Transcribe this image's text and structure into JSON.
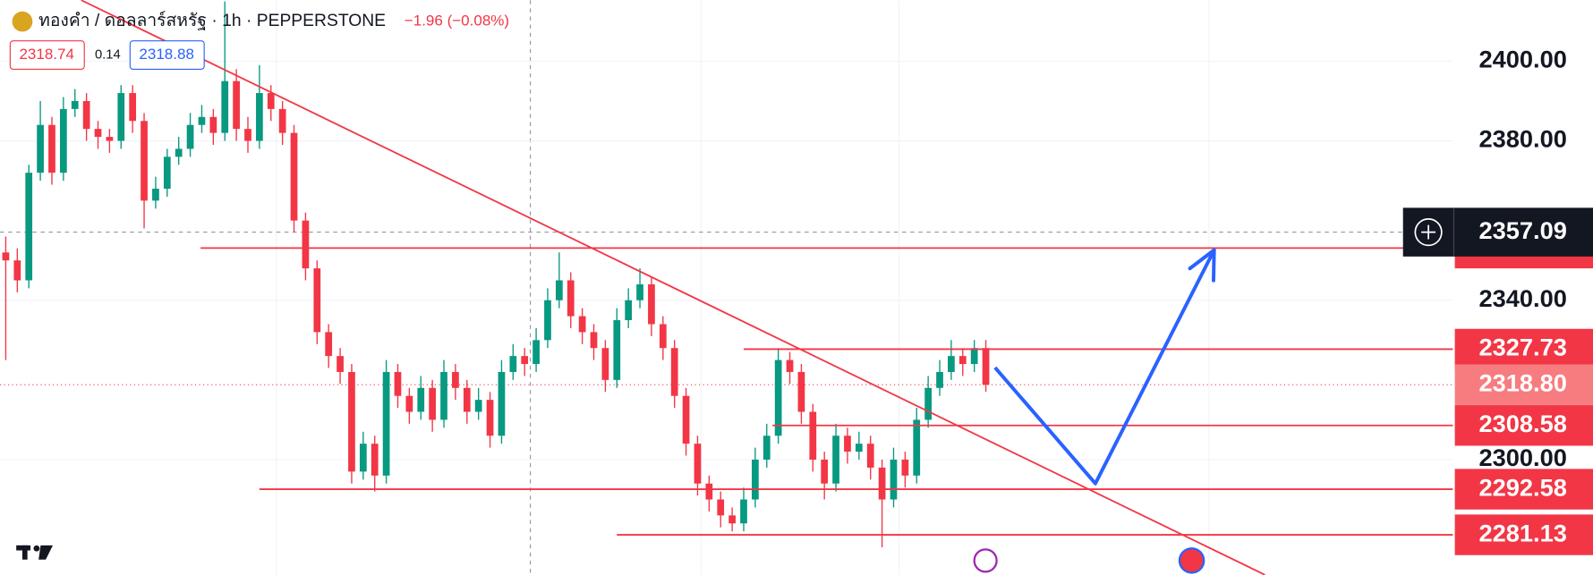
{
  "header": {
    "symbol": "ทองคำ / ดอลลาร์สหรัฐ · 1h · PEPPERSTONE",
    "change": "−1.96 (−0.08%)",
    "bid": "2318.74",
    "spread": "0.14",
    "ask": "2318.88"
  },
  "chart_data": {
    "type": "candlestick",
    "xlim": [
      -0.5,
      125.5
    ],
    "ylim": [
      2271.1,
      2415.3
    ],
    "yticks": [
      {
        "value": 2400,
        "label": "2400.00"
      },
      {
        "value": 2380,
        "label": "2380.00"
      },
      {
        "value": 2340,
        "label": "2340.00"
      },
      {
        "value": 2300,
        "label": "2300.00"
      }
    ],
    "grid": true,
    "colors": {
      "up": "#089981",
      "down": "#f23645"
    },
    "ohlc": [
      [
        2352,
        2356,
        2325,
        2350
      ],
      [
        2350,
        2353,
        2342,
        2345
      ],
      [
        2345,
        2374,
        2343,
        2372
      ],
      [
        2372,
        2390,
        2370,
        2384
      ],
      [
        2384,
        2386,
        2369,
        2372
      ],
      [
        2372,
        2391,
        2370,
        2388
      ],
      [
        2388,
        2393,
        2386,
        2390
      ],
      [
        2390,
        2392,
        2380,
        2383
      ],
      [
        2383,
        2385,
        2378,
        2381
      ],
      [
        2381,
        2383,
        2377,
        2380
      ],
      [
        2380,
        2394,
        2378,
        2392
      ],
      [
        2392,
        2394,
        2382,
        2385
      ],
      [
        2385,
        2387,
        2358,
        2365
      ],
      [
        2365,
        2371,
        2363,
        2368
      ],
      [
        2368,
        2378,
        2366,
        2376
      ],
      [
        2376,
        2381,
        2374,
        2378
      ],
      [
        2378,
        2387,
        2376,
        2384
      ],
      [
        2384,
        2389,
        2382,
        2386
      ],
      [
        2386,
        2388,
        2379,
        2382
      ],
      [
        2382,
        2415,
        2380,
        2395
      ],
      [
        2395,
        2398,
        2380,
        2383
      ],
      [
        2383,
        2386,
        2377,
        2380
      ],
      [
        2380,
        2399,
        2378,
        2392
      ],
      [
        2392,
        2394,
        2385,
        2388
      ],
      [
        2388,
        2390,
        2379,
        2382
      ],
      [
        2382,
        2384,
        2357,
        2360
      ],
      [
        2360,
        2362,
        2345,
        2348
      ],
      [
        2348,
        2350,
        2329,
        2332
      ],
      [
        2332,
        2334,
        2323,
        2326
      ],
      [
        2326,
        2328,
        2319,
        2322
      ],
      [
        2322,
        2324,
        2294,
        2297
      ],
      [
        2297,
        2307,
        2295,
        2304
      ],
      [
        2304,
        2306,
        2292,
        2296
      ],
      [
        2296,
        2325,
        2294,
        2322
      ],
      [
        2322,
        2324,
        2313,
        2316
      ],
      [
        2316,
        2318,
        2309,
        2312
      ],
      [
        2312,
        2321,
        2310,
        2318
      ],
      [
        2318,
        2320,
        2307,
        2310
      ],
      [
        2310,
        2325,
        2308,
        2322
      ],
      [
        2322,
        2324,
        2315,
        2318
      ],
      [
        2318,
        2320,
        2309,
        2312
      ],
      [
        2312,
        2318,
        2310,
        2315
      ],
      [
        2315,
        2317,
        2303,
        2306
      ],
      [
        2306,
        2325,
        2304,
        2322
      ],
      [
        2322,
        2329,
        2320,
        2326
      ],
      [
        2326,
        2328,
        2321,
        2324
      ],
      [
        2324,
        2333,
        2322,
        2330
      ],
      [
        2330,
        2343,
        2328,
        2340
      ],
      [
        2340,
        2352,
        2338,
        2345
      ],
      [
        2345,
        2347,
        2333,
        2336
      ],
      [
        2336,
        2338,
        2329,
        2332
      ],
      [
        2332,
        2334,
        2325,
        2328
      ],
      [
        2328,
        2330,
        2317,
        2320
      ],
      [
        2320,
        2338,
        2318,
        2335
      ],
      [
        2335,
        2343,
        2333,
        2340
      ],
      [
        2340,
        2348,
        2338,
        2344
      ],
      [
        2344,
        2346,
        2331,
        2334
      ],
      [
        2334,
        2336,
        2325,
        2328
      ],
      [
        2328,
        2330,
        2313,
        2316
      ],
      [
        2316,
        2318,
        2301,
        2304
      ],
      [
        2304,
        2306,
        2291,
        2294
      ],
      [
        2294,
        2296,
        2287,
        2290
      ],
      [
        2290,
        2292,
        2283,
        2286
      ],
      [
        2286,
        2288,
        2282,
        2284
      ],
      [
        2284,
        2293,
        2282,
        2290
      ],
      [
        2290,
        2303,
        2288,
        2300
      ],
      [
        2300,
        2309,
        2298,
        2306
      ],
      [
        2306,
        2328,
        2304,
        2325
      ],
      [
        2325,
        2327,
        2319,
        2322
      ],
      [
        2322,
        2324,
        2309,
        2312
      ],
      [
        2312,
        2314,
        2297,
        2300
      ],
      [
        2300,
        2302,
        2290,
        2294
      ],
      [
        2294,
        2309,
        2292,
        2306
      ],
      [
        2306,
        2308,
        2299,
        2302
      ],
      [
        2302,
        2307,
        2300,
        2304
      ],
      [
        2304,
        2306,
        2295,
        2298
      ],
      [
        2298,
        2300,
        2278,
        2290
      ],
      [
        2290,
        2303,
        2288,
        2300
      ],
      [
        2300,
        2302,
        2293,
        2296
      ],
      [
        2296,
        2313,
        2294,
        2310
      ],
      [
        2310,
        2321,
        2308,
        2318
      ],
      [
        2318,
        2325,
        2316,
        2322
      ],
      [
        2322,
        2330,
        2320,
        2326
      ],
      [
        2326,
        2328,
        2321,
        2324
      ],
      [
        2324,
        2330,
        2322,
        2328
      ],
      [
        2328,
        2330,
        2317,
        2318.8
      ]
    ],
    "last_price": {
      "value": 2318.8,
      "label": "2318.80"
    },
    "crosshair_price": 2357.09,
    "levels": [
      {
        "value": 2353.1,
        "x_start": 16.9
      },
      {
        "value": 2327.73,
        "x_start": 64
      },
      {
        "value": 2308.58,
        "x_start": 66.5
      },
      {
        "value": 2292.58,
        "x_start": 22
      },
      {
        "value": 2281.13,
        "x_start": 53
      }
    ],
    "level_color": "#f23645",
    "trendline": {
      "x": [
        6.55,
        109.2
      ],
      "y": [
        2415.3,
        2271.1
      ],
      "color": "#f23645"
    },
    "projection": {
      "x": [
        85.8,
        94.5,
        104.8
      ],
      "y": [
        2323.1,
        2294,
        2352.6
      ],
      "color": "#2962ff"
    }
  }
}
